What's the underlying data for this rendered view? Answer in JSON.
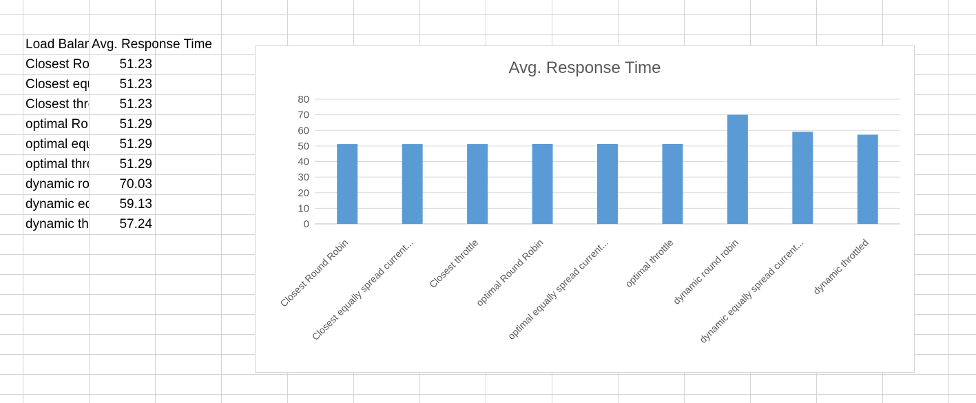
{
  "sheet": {
    "header": {
      "col_a": "Load Balancer",
      "col_b": "Avg. Response Time"
    },
    "rows": [
      {
        "name": "Closest Round Robin",
        "value": "51.23"
      },
      {
        "name": "Closest equally spread current load",
        "value": "51.23"
      },
      {
        "name": "Closest throttle",
        "value": "51.23"
      },
      {
        "name": "optimal Round Robin",
        "value": "51.29"
      },
      {
        "name": "optimal equally spread current load",
        "value": "51.29"
      },
      {
        "name": "optimal throttle",
        "value": "51.29"
      },
      {
        "name": "dynamic round robin",
        "value": "70.03"
      },
      {
        "name": "dynamic equally spread current load",
        "value": "59.13"
      },
      {
        "name": "dynamic throttled",
        "value": "57.24"
      }
    ]
  },
  "chart_data": {
    "type": "bar",
    "title": "Avg. Response Time",
    "categories": [
      "Closest Round Robin",
      "Closest equally spread current...",
      "Closest throttle",
      "optimal Round Robin",
      "optimal equally spread current...",
      "optimal throttle",
      "dynamic round robin",
      "dynamic equally spread current...",
      "dynamic throttled"
    ],
    "values": [
      51.23,
      51.23,
      51.23,
      51.29,
      51.29,
      51.29,
      70.03,
      59.13,
      57.24
    ],
    "ylim": [
      0,
      80
    ],
    "yticks": [
      0,
      10,
      20,
      30,
      40,
      50,
      60,
      70,
      80
    ],
    "grid": true,
    "legend": "none",
    "bar_color": "#5b9bd5",
    "xlabel": "",
    "ylabel": ""
  },
  "colors": {
    "gridline": "#d4d4d4",
    "chart_gridline": "#d9d9d9",
    "axis_text": "#595959"
  }
}
